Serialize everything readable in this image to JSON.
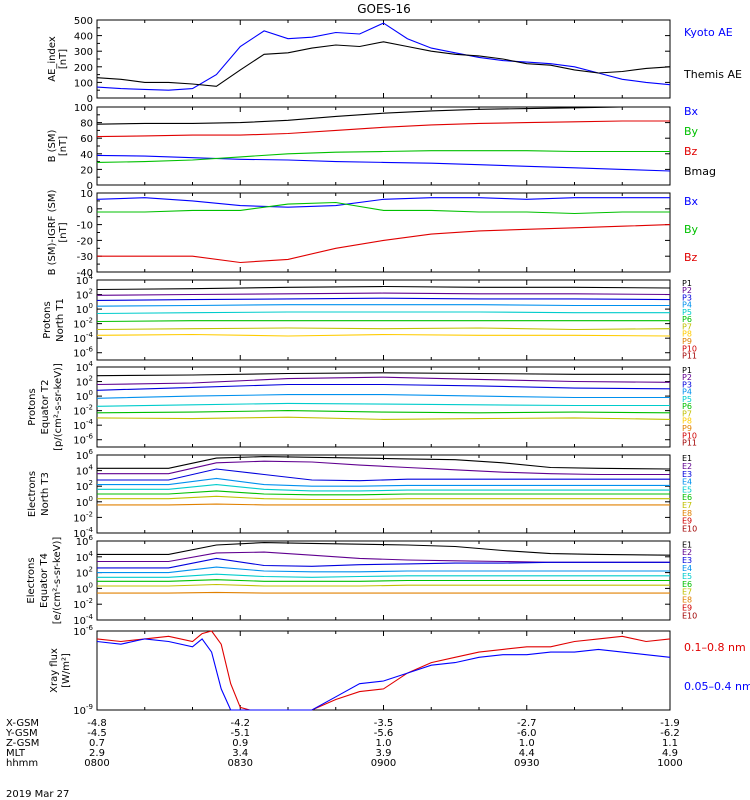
{
  "title": "GOES-16",
  "time": {
    "labels": [
      "0800",
      "0830",
      "0900",
      "0930",
      "1000"
    ],
    "range_min": [
      0,
      120
    ]
  },
  "date": "2019 Mar 27",
  "footer": {
    "rows": [
      {
        "label": "X-GSM",
        "values": [
          "-4.8",
          "-4.2",
          "-3.5",
          "-2.7",
          "-1.9"
        ]
      },
      {
        "label": "Y-GSM",
        "values": [
          "-4.5",
          "-5.1",
          "-5.6",
          "-6.0",
          "-6.2"
        ]
      },
      {
        "label": "Z-GSM",
        "values": [
          "0.7",
          "0.9",
          "1.0",
          "1.0",
          "1.1"
        ]
      },
      {
        "label": "MLT",
        "values": [
          "2.9",
          "3.4",
          "3.9",
          "4.4",
          "4.9"
        ]
      },
      {
        "label": "hhmm",
        "values": [
          "0800",
          "0830",
          "0900",
          "0930",
          "1000"
        ]
      }
    ]
  },
  "chart_data": [
    {
      "type": "line",
      "ylabel": [
        "AE_index",
        "[nT]"
      ],
      "yscale": "linear",
      "ylim": [
        0,
        500
      ],
      "yticks": [
        "0",
        "100",
        "200",
        "300",
        "400",
        "500"
      ],
      "x": [
        0,
        5,
        10,
        15,
        20,
        25,
        30,
        35,
        40,
        45,
        50,
        55,
        60,
        65,
        70,
        75,
        80,
        85,
        90,
        95,
        100,
        105,
        110,
        115,
        120
      ],
      "series": [
        {
          "name": "Kyoto AE",
          "color": "#0000ff",
          "values": [
            70,
            60,
            55,
            50,
            60,
            150,
            330,
            430,
            380,
            390,
            420,
            410,
            480,
            380,
            320,
            290,
            260,
            240,
            230,
            220,
            200,
            160,
            120,
            100,
            85
          ]
        },
        {
          "name": "Themis AE",
          "color": "#000000",
          "values": [
            130,
            120,
            100,
            100,
            90,
            75,
            180,
            280,
            290,
            320,
            340,
            330,
            360,
            330,
            300,
            280,
            270,
            250,
            220,
            210,
            180,
            160,
            170,
            190,
            200
          ]
        }
      ]
    },
    {
      "type": "line",
      "ylabel": [
        "B (SM)",
        "[nT]"
      ],
      "yscale": "linear",
      "ylim": [
        0,
        100
      ],
      "yticks": [
        "0",
        "20",
        "40",
        "60",
        "80",
        "100"
      ],
      "x": [
        0,
        10,
        20,
        30,
        40,
        50,
        60,
        70,
        80,
        90,
        100,
        110,
        120
      ],
      "series": [
        {
          "name": "Bx",
          "color": "#0000ff",
          "values": [
            38,
            37,
            35,
            33,
            32,
            30,
            29,
            28,
            26,
            24,
            22,
            20,
            18
          ]
        },
        {
          "name": "By",
          "color": "#00c000",
          "values": [
            29,
            30,
            32,
            36,
            40,
            42,
            43,
            44,
            44,
            44,
            43,
            43,
            43
          ]
        },
        {
          "name": "Bz",
          "color": "#e00000",
          "values": [
            62,
            63,
            64,
            64,
            66,
            70,
            74,
            77,
            79,
            80,
            81,
            82,
            82
          ]
        },
        {
          "name": "Bmag",
          "color": "#000000",
          "values": [
            78,
            79,
            79,
            80,
            83,
            88,
            92,
            95,
            97,
            98,
            99,
            100,
            100
          ]
        }
      ]
    },
    {
      "type": "line",
      "ylabel": [
        "B (SM)-IGRF (SM)",
        "[nT]"
      ],
      "yscale": "linear",
      "ylim": [
        -40,
        10
      ],
      "yticks": [
        "-40",
        "-30",
        "-20",
        "-10",
        "0",
        "10"
      ],
      "x": [
        0,
        10,
        20,
        30,
        40,
        50,
        60,
        70,
        80,
        90,
        100,
        110,
        120
      ],
      "series": [
        {
          "name": "Bx",
          "color": "#0000ff",
          "values": [
            6,
            7,
            5,
            2,
            1,
            2,
            6,
            7,
            7,
            6,
            7,
            7,
            7
          ]
        },
        {
          "name": "By",
          "color": "#00c000",
          "values": [
            -2,
            -2,
            -1,
            -1,
            3,
            4,
            -1,
            -1,
            -2,
            -2,
            -3,
            -2,
            -2
          ]
        },
        {
          "name": "Bz",
          "color": "#e00000",
          "values": [
            -30,
            -30,
            -30,
            -34,
            -32,
            -25,
            -20,
            -16,
            -14,
            -13,
            -12,
            -11,
            -10
          ]
        }
      ]
    },
    {
      "type": "line",
      "ylabel": [
        "Protons",
        "North T1"
      ],
      "yscale": "log",
      "ylim": [
        -7,
        4
      ],
      "yticks": [
        "10^4",
        "10^2",
        "10^0",
        "10^-2",
        "10^-4",
        "10^-6"
      ],
      "x": [
        0,
        20,
        40,
        60,
        80,
        100,
        120
      ],
      "series": [
        {
          "name": "P1",
          "color": "#000000",
          "values": [
            2.7,
            2.8,
            3.0,
            3.1,
            3.0,
            3.0,
            2.9
          ]
        },
        {
          "name": "P2",
          "color": "#600090",
          "values": [
            1.9,
            2.0,
            2.1,
            2.2,
            2.1,
            2.1,
            2.0
          ]
        },
        {
          "name": "P3",
          "color": "#0000dd",
          "values": [
            1.2,
            1.3,
            1.4,
            1.5,
            1.4,
            1.4,
            1.3
          ]
        },
        {
          "name": "P4",
          "color": "#0090ee",
          "values": [
            0.4,
            0.5,
            0.6,
            0.6,
            0.6,
            0.5,
            0.5
          ]
        },
        {
          "name": "P5",
          "color": "#00cccc",
          "values": [
            -0.6,
            -0.5,
            -0.4,
            -0.4,
            -0.4,
            -0.5,
            -0.5
          ]
        },
        {
          "name": "P6",
          "color": "#00c000",
          "values": [
            -1.7,
            -1.6,
            -1.6,
            -1.6,
            -1.6,
            -1.6,
            -1.6
          ]
        },
        {
          "name": "P7",
          "color": "#c0c000",
          "values": [
            -2.8,
            -2.7,
            -2.6,
            -2.7,
            -2.6,
            -2.8,
            -2.7
          ]
        },
        {
          "name": "P8",
          "color": "#ffcc00",
          "values": [
            -3.6,
            -3.5,
            -3.7,
            -3.5,
            -3.6,
            -3.6,
            -3.7
          ]
        }
      ],
      "legend": [
        "P1",
        "P2",
        "P3",
        "P4",
        "P5",
        "P6",
        "P7",
        "P8",
        "P9",
        "P10",
        "P11"
      ]
    },
    {
      "type": "line",
      "ylabel": [
        "Protons",
        "Equator T2",
        "[p/(cm²-s-sr-keV)]"
      ],
      "yscale": "log",
      "ylim": [
        -7,
        4
      ],
      "yticks": [
        "10^4",
        "10^2",
        "10^0",
        "10^-2",
        "10^-4",
        "10^-6"
      ],
      "x": [
        0,
        20,
        40,
        60,
        80,
        100,
        120
      ],
      "series": [
        {
          "name": "P1",
          "color": "#000000",
          "values": [
            2.8,
            2.9,
            3.1,
            3.2,
            3.1,
            3.0,
            3.0
          ]
        },
        {
          "name": "P2",
          "color": "#600090",
          "values": [
            1.6,
            1.8,
            2.4,
            2.6,
            2.3,
            2.0,
            1.9
          ]
        },
        {
          "name": "P3",
          "color": "#0000dd",
          "values": [
            0.8,
            1.2,
            1.6,
            1.6,
            1.4,
            1.1,
            1.0
          ]
        },
        {
          "name": "P4",
          "color": "#0090ee",
          "values": [
            -0.3,
            0.0,
            0.2,
            0.2,
            0.0,
            -0.2,
            -0.2
          ]
        },
        {
          "name": "P5",
          "color": "#00cccc",
          "values": [
            -1.4,
            -1.2,
            -1.0,
            -1.1,
            -1.2,
            -1.3,
            -1.3
          ]
        },
        {
          "name": "P6",
          "color": "#00c000",
          "values": [
            -2.3,
            -2.2,
            -2.0,
            -2.2,
            -2.3,
            -2.2,
            -2.3
          ]
        },
        {
          "name": "P7",
          "color": "#c0c000",
          "values": [
            -3.0,
            -3.1,
            -2.9,
            -3.2,
            -3.1,
            -3.0,
            -3.2
          ]
        }
      ],
      "legend": [
        "P1",
        "P2",
        "P3",
        "P4",
        "P5",
        "P6",
        "P7",
        "P8",
        "P9",
        "P10",
        "P11"
      ]
    },
    {
      "type": "line",
      "ylabel": [
        "Electrons",
        "North T3"
      ],
      "yscale": "log",
      "ylim": [
        -4,
        6
      ],
      "yticks": [
        "10^6",
        "10^4",
        "10^2",
        "10^0",
        "10^-2",
        "10^-4"
      ],
      "x": [
        0,
        15,
        25,
        35,
        45,
        55,
        65,
        75,
        85,
        95,
        105,
        120
      ],
      "series": [
        {
          "name": "E1",
          "color": "#000000",
          "values": [
            4.3,
            4.3,
            5.6,
            5.8,
            5.7,
            5.6,
            5.5,
            5.4,
            5.0,
            4.4,
            4.3,
            4.2
          ]
        },
        {
          "name": "E2",
          "color": "#600090",
          "values": [
            3.6,
            3.6,
            5.0,
            5.2,
            5.1,
            4.7,
            4.4,
            4.1,
            3.8,
            3.6,
            3.5,
            3.5
          ]
        },
        {
          "name": "E3",
          "color": "#0000dd",
          "values": [
            2.8,
            2.8,
            4.2,
            3.5,
            2.8,
            2.7,
            2.9,
            2.9,
            2.9,
            2.9,
            2.9,
            2.9
          ]
        },
        {
          "name": "E4",
          "color": "#0090ee",
          "values": [
            2.2,
            2.2,
            3.0,
            2.2,
            2.0,
            2.0,
            2.1,
            2.1,
            2.1,
            2.1,
            2.1,
            2.1
          ]
        },
        {
          "name": "E5",
          "color": "#00cccc",
          "values": [
            1.6,
            1.6,
            2.2,
            1.6,
            1.4,
            1.4,
            1.5,
            1.5,
            1.5,
            1.5,
            1.5,
            1.5
          ]
        },
        {
          "name": "E6",
          "color": "#00c000",
          "values": [
            1.0,
            1.0,
            1.4,
            1.0,
            0.9,
            0.9,
            1.0,
            1.0,
            1.0,
            1.0,
            1.0,
            1.0
          ]
        },
        {
          "name": "E7",
          "color": "#c0c000",
          "values": [
            0.4,
            0.4,
            0.7,
            0.4,
            0.3,
            0.3,
            0.4,
            0.4,
            0.4,
            0.4,
            0.4,
            0.4
          ]
        },
        {
          "name": "E8",
          "color": "#e08000",
          "values": [
            -0.4,
            -0.4,
            -0.3,
            -0.4,
            -0.4,
            -0.4,
            -0.4,
            -0.4,
            -0.4,
            -0.4,
            -0.4,
            -0.4
          ]
        }
      ],
      "legend": [
        "E1",
        "E2",
        "E3",
        "E4",
        "E5",
        "E6",
        "E7",
        "E8",
        "E9",
        "E10"
      ]
    },
    {
      "type": "line",
      "ylabel": [
        "Electrons",
        "Equator T4",
        "[e/(cm²-s-sr-keV)]"
      ],
      "yscale": "log",
      "ylim": [
        -4,
        6
      ],
      "yticks": [
        "10^6",
        "10^4",
        "10^2",
        "10^0",
        "10^-2",
        "10^-4"
      ],
      "x": [
        0,
        15,
        25,
        35,
        45,
        55,
        65,
        75,
        85,
        95,
        105,
        120
      ],
      "series": [
        {
          "name": "E1",
          "color": "#000000",
          "values": [
            4.3,
            4.3,
            5.5,
            5.8,
            5.7,
            5.6,
            5.5,
            5.3,
            4.8,
            4.4,
            4.3,
            4.2
          ]
        },
        {
          "name": "E2",
          "color": "#600090",
          "values": [
            3.4,
            3.4,
            4.5,
            4.6,
            4.2,
            3.8,
            3.6,
            3.5,
            3.4,
            3.3,
            3.3,
            3.3
          ]
        },
        {
          "name": "E3",
          "color": "#0000dd",
          "values": [
            2.6,
            2.6,
            3.8,
            2.9,
            2.8,
            3.0,
            3.1,
            3.2,
            3.2,
            3.3,
            3.3,
            3.3
          ]
        },
        {
          "name": "E4",
          "color": "#0090ee",
          "values": [
            2.0,
            2.0,
            2.7,
            2.2,
            2.1,
            2.1,
            2.2,
            2.2,
            2.2,
            2.2,
            2.2,
            2.2
          ]
        },
        {
          "name": "E5",
          "color": "#00cccc",
          "values": [
            1.4,
            1.4,
            1.8,
            1.5,
            1.4,
            1.5,
            1.6,
            1.6,
            1.6,
            1.6,
            1.6,
            1.6
          ]
        },
        {
          "name": "E6",
          "color": "#00c000",
          "values": [
            0.9,
            0.9,
            1.1,
            0.9,
            0.9,
            0.9,
            1.0,
            1.0,
            1.0,
            1.0,
            1.0,
            1.0
          ]
        },
        {
          "name": "E7",
          "color": "#c0c000",
          "values": [
            0.3,
            0.3,
            0.5,
            0.3,
            0.3,
            0.3,
            0.4,
            0.4,
            0.4,
            0.4,
            0.4,
            0.4
          ]
        },
        {
          "name": "E8",
          "color": "#e08000",
          "values": [
            -0.6,
            -0.6,
            -0.5,
            -0.6,
            -0.6,
            -0.6,
            -0.6,
            -0.6,
            -0.6,
            -0.6,
            -0.6,
            -0.6
          ]
        }
      ],
      "legend": [
        "E1",
        "E2",
        "E3",
        "E4",
        "E5",
        "E6",
        "E7",
        "E8",
        "E9",
        "E10"
      ]
    },
    {
      "type": "line",
      "ylabel": [
        "Xray flux",
        "[W/m²]"
      ],
      "yscale": "log",
      "ylim": [
        -9,
        -6
      ],
      "yticks": [
        "10^-6",
        "10^-9"
      ],
      "x": [
        0,
        5,
        10,
        15,
        20,
        22,
        24,
        26,
        28,
        30,
        32,
        35,
        40,
        45,
        50,
        55,
        60,
        65,
        70,
        75,
        80,
        85,
        90,
        95,
        100,
        105,
        110,
        115,
        120
      ],
      "series": [
        {
          "name": "0.1–0.8 nm",
          "color": "#e00000",
          "values": [
            -6.3,
            -6.4,
            -6.3,
            -6.2,
            -6.4,
            -6.1,
            -6.0,
            -6.5,
            -8.0,
            -8.9,
            -9.0,
            -9.0,
            -9.0,
            -9.0,
            -8.6,
            -8.3,
            -8.2,
            -7.6,
            -7.2,
            -7.0,
            -6.8,
            -6.7,
            -6.6,
            -6.6,
            -6.4,
            -6.3,
            -6.2,
            -6.4,
            -6.3
          ]
        },
        {
          "name": "0.05–0.4 nm",
          "color": "#0000ff",
          "values": [
            -6.4,
            -6.5,
            -6.3,
            -6.4,
            -6.6,
            -6.3,
            -6.8,
            -8.2,
            -9.0,
            -9.0,
            -9.0,
            -9.0,
            -9.0,
            -9.0,
            -8.5,
            -8.0,
            -7.9,
            -7.6,
            -7.3,
            -7.2,
            -7.0,
            -6.9,
            -6.9,
            -6.8,
            -6.8,
            -6.7,
            -6.8,
            -6.9,
            -7.0
          ]
        }
      ]
    }
  ]
}
